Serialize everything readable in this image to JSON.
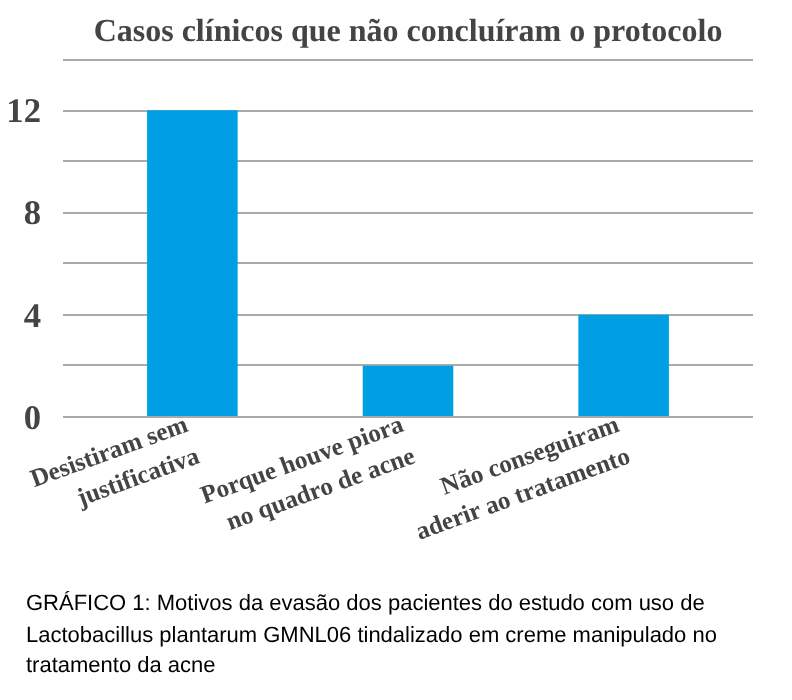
{
  "chart_data": {
    "type": "bar",
    "title": "Casos clínicos que não concluíram o protocolo",
    "categories": [
      "Desistiram sem\njustificativa",
      "Porque houve piora\nno quadro de acne",
      "Não conseguiram\naderir ao tratamento"
    ],
    "values": [
      12,
      2,
      4
    ],
    "color": "#009fe3",
    "ylim": [
      0,
      14
    ],
    "yticks": [
      0,
      {
        "value": 2,
        "label": null
      },
      4,
      {
        "value": 6,
        "label": null
      },
      8,
      {
        "value": 10,
        "label": null
      },
      12,
      {
        "value": 14,
        "label": null
      }
    ],
    "grid": "y",
    "annotations": [
      "GRÁFICO 1: Motivos da evasão dos pacientes do estudo com uso de Lactobacillus plantarum GMNL06 tindalizado em creme manipulado no tratamento da acne"
    ]
  }
}
